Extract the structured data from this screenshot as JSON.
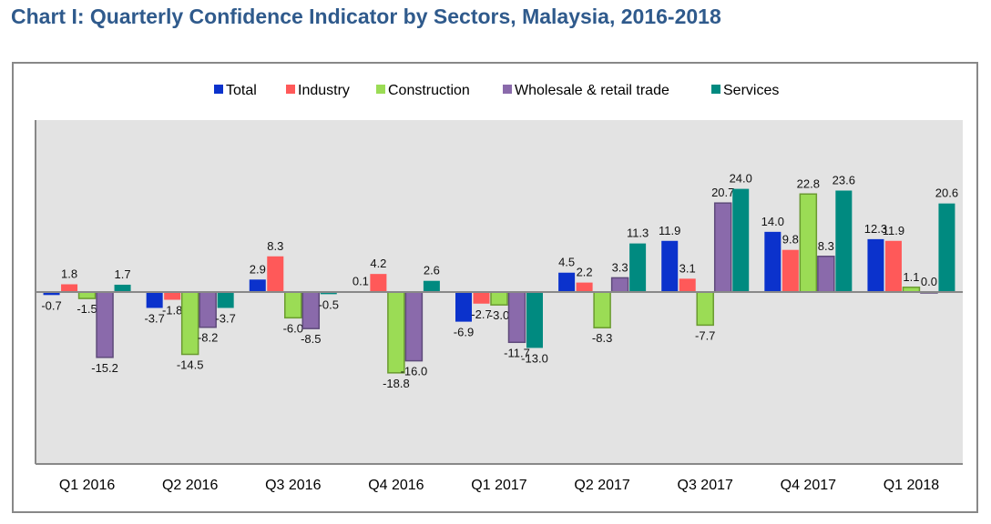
{
  "title": "Chart I: Quarterly Confidence Indicator by Sectors, Malaysia, 2016-2018",
  "chart_data": {
    "type": "bar",
    "title": "Chart I: Quarterly Confidence Indicator by Sectors, Malaysia, 2016-2018",
    "xlabel": "",
    "ylabel": "",
    "ylim": [
      -40,
      40
    ],
    "grid": false,
    "legend_position": "top",
    "categories": [
      "Q1 2016",
      "Q2 2016",
      "Q3 2016",
      "Q4 2016",
      "Q1 2017",
      "Q2 2017",
      "Q3 2017",
      "Q4 2017",
      "Q1 2018"
    ],
    "series": [
      {
        "name": "Total",
        "color": "#0b32cc",
        "values": [
          -0.7,
          -3.7,
          2.9,
          0.1,
          -6.9,
          4.5,
          11.9,
          14.0,
          12.3
        ]
      },
      {
        "name": "Industry",
        "color": "#ff5959",
        "values": [
          1.8,
          -1.8,
          8.3,
          4.2,
          -2.7,
          2.2,
          3.1,
          9.8,
          11.9
        ]
      },
      {
        "name": "Construction",
        "color": "#9bdc55",
        "values": [
          -1.5,
          -14.5,
          -6.0,
          -18.8,
          -3.0,
          -8.3,
          -7.7,
          22.8,
          1.1
        ]
      },
      {
        "name": "Wholesale & retail trade",
        "color": "#8a6aab",
        "values": [
          -15.2,
          -8.2,
          -8.5,
          -16.0,
          -11.7,
          3.3,
          20.7,
          8.3,
          0.0
        ]
      },
      {
        "name": "Services",
        "color": "#008a80",
        "values": [
          1.7,
          -3.7,
          -0.5,
          2.6,
          -13.0,
          11.3,
          24.0,
          23.6,
          20.6
        ]
      }
    ]
  }
}
